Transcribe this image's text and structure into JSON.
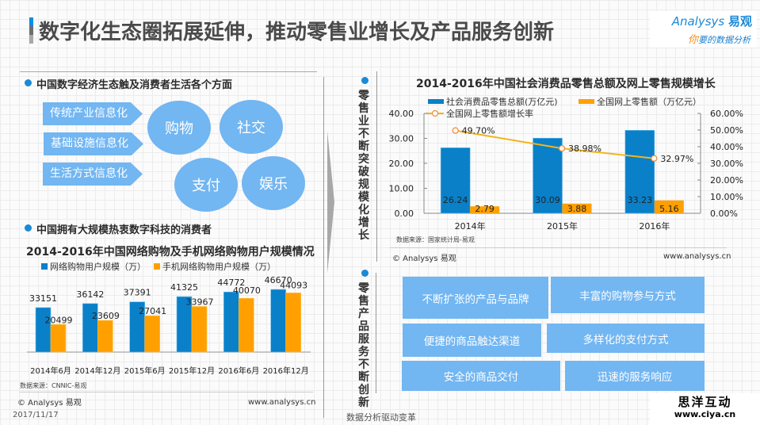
{
  "header": {
    "title": "数字化生态圈拓展延伸，推动零售业增长及产品服务创新",
    "title_bar_colors": [
      "#0a8fe0",
      "#6e6e6e",
      "#a8a8a8"
    ],
    "logo_brand": "nalysys",
    "logo_brand_prefix": "A",
    "logo_cn": "易观",
    "logo_slogan_first": "你",
    "logo_slogan_rest": "要的数据分析"
  },
  "left": {
    "section1_heading": "中国数字经济生态触及消费者生活各个方面",
    "tags": [
      "传统产业信息化",
      "基础设施信息化",
      "生活方式信息化"
    ],
    "bubbles": [
      "购物",
      "社交",
      "支付",
      "娱乐"
    ],
    "section2_heading": "中国拥有大规模热衷数字科技的消费者",
    "source": "数据来源：CNNIC-易观",
    "copyright": "© Analysys 易观",
    "website": "www.analysys.cn",
    "date": "2017/11/17"
  },
  "right": {
    "section1_vertical": "零售业不断突破规模化增长",
    "source": "数据来源：国家统计局-易观",
    "copyright": "© Analysys 易观",
    "website": "www.analysys.cn",
    "section2_vertical": "零售产品服务不断创新",
    "services": [
      "不断扩张的产品与品牌",
      "丰富的购物参与方式",
      "便捷的商品触达渠道",
      "多样化的支付方式",
      "安全的商品交付",
      "迅速的服务响应"
    ]
  },
  "footer": {
    "slogan": "数据分析驱动变革",
    "watermark_title": "思洋互动",
    "watermark_url": "www.ciya.cn"
  },
  "colors": {
    "blue": "#0a80c8",
    "orange": "#ffa000",
    "line": "#f4b41a",
    "light_blue": "#72b6f2"
  },
  "chart_data": [
    {
      "type": "bar",
      "title": "2014-2016年中国网络购物及手机网络购物用户规模情况",
      "categories": [
        "2014年6月",
        "2014年12月",
        "2015年6月",
        "2015年12月",
        "2016年6月",
        "2016年12月"
      ],
      "series": [
        {
          "name": "网络购物用户规模（万）",
          "values": [
            33151,
            36142,
            37391,
            41325,
            44772,
            46670
          ]
        },
        {
          "name": "手机网络购物用户规模（万）",
          "values": [
            20499,
            23609,
            27041,
            33967,
            40070,
            44093
          ]
        }
      ],
      "xlabel": "",
      "ylabel": "",
      "ylim": [
        0,
        50000
      ],
      "grid": false,
      "legend": "top"
    },
    {
      "type": "bar",
      "title": "2014-2016年中国社会消费品零售总额及网上零售规模增长",
      "categories": [
        "2014年",
        "2015年",
        "2016年"
      ],
      "series": [
        {
          "name": "社会消费品零售总额(万亿元)",
          "values": [
            26.24,
            30.09,
            33.23
          ],
          "axis": "left"
        },
        {
          "name": "全国网上零售额（万亿元）",
          "values": [
            2.79,
            3.88,
            5.16
          ],
          "axis": "left"
        },
        {
          "name": "全国网上零售额增长率",
          "type": "line",
          "values": [
            49.7,
            38.98,
            32.97
          ],
          "axis": "right",
          "unit": "%"
        }
      ],
      "yticks_left": [
        "0.00",
        "10.00",
        "20.00",
        "30.00",
        "40.00"
      ],
      "yticks_right": [
        "0.00%",
        "10.00%",
        "20.00%",
        "30.00%",
        "40.00%",
        "50.00%",
        "60.00%"
      ],
      "ylim_left": [
        0,
        40
      ],
      "ylim_right": [
        0,
        60
      ],
      "grid": false,
      "legend": "top"
    }
  ]
}
